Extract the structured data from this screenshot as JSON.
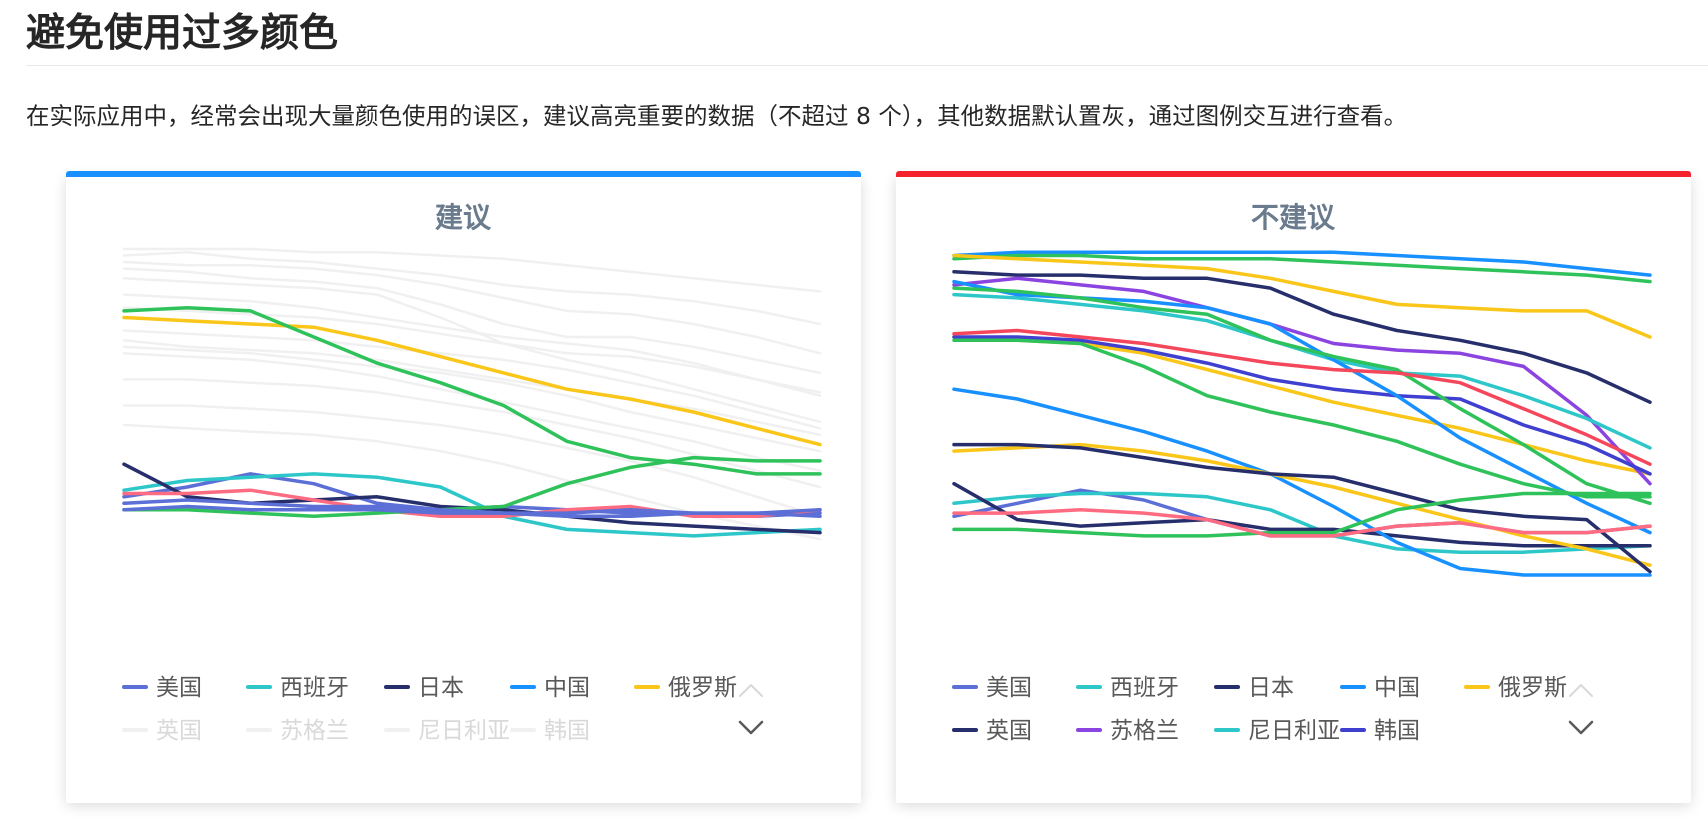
{
  "page": {
    "title": "避免使用过多颜色",
    "description": "在实际应用中，经常会出现大量颜色使用的误区，建议高亮重要的数据（不超过 8 个），其他数据默认置灰，通过图例交互进行查看。"
  },
  "colors": {
    "recommend_bar": "#1890ff",
    "not_recommend_bar": "#f5222d",
    "card_title": "#697b8c",
    "legend_text": "#595959",
    "legend_text_muted": "#d9d9d9",
    "gray_line": "#f0f0f0",
    "pager_active": "#595959",
    "pager_inactive": "#d9d9d9"
  },
  "chart_data": [
    {
      "type": "line",
      "title": "建议",
      "xlabel": "",
      "ylabel": "",
      "x": [
        0,
        1,
        2,
        3,
        4,
        5,
        6,
        7,
        8,
        9,
        10,
        11
      ],
      "ylim": [
        0,
        100
      ],
      "grid": false,
      "legend_position": "bottom",
      "series": [
        {
          "name": "美国",
          "color": "#5b6fd6",
          "values": [
            24,
            27,
            31,
            28,
            22,
            20,
            21,
            20,
            19,
            19,
            18,
            19
          ]
        },
        {
          "name": "西班牙",
          "color": "#2ec7c9",
          "values": [
            26,
            29,
            30,
            31,
            30,
            27,
            18,
            14,
            13,
            12,
            13,
            14
          ]
        },
        {
          "name": "日本",
          "color": "#262e6b",
          "values": [
            34,
            24,
            22,
            23,
            24,
            21,
            20,
            18,
            16,
            15,
            14,
            13
          ]
        },
        {
          "name": "中国",
          "color": "#ff6b81",
          "values": [
            25,
            25,
            26,
            23,
            20,
            18,
            18,
            20,
            21,
            18,
            18,
            20
          ]
        },
        {
          "name": "俄罗斯",
          "color": "#fac619",
          "values": [
            79,
            78,
            77,
            76,
            72,
            67,
            62,
            57,
            54,
            50,
            45,
            40
          ]
        },
        {
          "name": "英国",
          "color": "#2fc25b",
          "values": [
            81,
            82,
            81,
            73,
            65,
            59,
            52,
            41,
            36,
            34,
            31,
            31
          ]
        },
        {
          "name": "苏格兰",
          "color": "#2fc25b",
          "values": [
            20,
            20,
            19,
            18,
            19,
            20,
            21,
            28,
            33,
            36,
            35,
            35
          ]
        },
        {
          "name": "尼日利亚",
          "color": "#5b6fd6",
          "values": [
            22,
            23,
            22,
            21,
            21,
            20,
            19,
            19,
            20,
            19,
            19,
            20
          ]
        },
        {
          "name": "韩国",
          "color": "#5b6fd6",
          "values": [
            20,
            21,
            20,
            20,
            20,
            19,
            19,
            18,
            18,
            19,
            19,
            18
          ]
        },
        {
          "name": "",
          "color": "#f0f0f0",
          "values": [
            100,
            100,
            100,
            99,
            99,
            98,
            97,
            95,
            93,
            91,
            89,
            87
          ]
        },
        {
          "name": "",
          "color": "#f0f0f0",
          "values": [
            98,
            99,
            97,
            96,
            94,
            92,
            89,
            87,
            86,
            84,
            81,
            77
          ]
        },
        {
          "name": "",
          "color": "#f0f0f0",
          "values": [
            96,
            95,
            95,
            94,
            92,
            89,
            85,
            81,
            80,
            77,
            73,
            68
          ]
        },
        {
          "name": "",
          "color": "#f0f0f0",
          "values": [
            94,
            93,
            91,
            90,
            88,
            83,
            77,
            73,
            73,
            70,
            66,
            62
          ]
        },
        {
          "name": "",
          "color": "#f0f0f0",
          "values": [
            91,
            90,
            89,
            88,
            86,
            79,
            71,
            68,
            67,
            64,
            60,
            55
          ]
        },
        {
          "name": "",
          "color": "#f0f0f0",
          "values": [
            86,
            85,
            84,
            82,
            79,
            76,
            73,
            71,
            69,
            65,
            60,
            56
          ]
        },
        {
          "name": "",
          "color": "#f0f0f0",
          "values": [
            82,
            81,
            80,
            79,
            77,
            74,
            71,
            66,
            62,
            57,
            52,
            47
          ]
        },
        {
          "name": "",
          "color": "#f0f0f0",
          "values": [
            75,
            74,
            73,
            72,
            70,
            68,
            66,
            63,
            59,
            55,
            50,
            45
          ]
        },
        {
          "name": "",
          "color": "#f0f0f0",
          "values": [
            72,
            70,
            69,
            68,
            66,
            63,
            60,
            57,
            54,
            51,
            47,
            43
          ]
        },
        {
          "name": "",
          "color": "#f0f0f0",
          "values": [
            70,
            69,
            68,
            66,
            64,
            62,
            59,
            55,
            50,
            46,
            42,
            38
          ]
        },
        {
          "name": "",
          "color": "#f0f0f0",
          "values": [
            68,
            67,
            66,
            64,
            61,
            57,
            53,
            49,
            45,
            41,
            36,
            32
          ]
        },
        {
          "name": "",
          "color": "#f0f0f0",
          "values": [
            60,
            60,
            59,
            58,
            56,
            53,
            50,
            46,
            42,
            37,
            32,
            27
          ]
        },
        {
          "name": "",
          "color": "#f0f0f0",
          "values": [
            52,
            52,
            51,
            50,
            48,
            46,
            43,
            39,
            35,
            30,
            24,
            18
          ]
        },
        {
          "name": "",
          "color": "#f0f0f0",
          "values": [
            46,
            45,
            44,
            43,
            41,
            38,
            34,
            29,
            24,
            19,
            15,
            11
          ]
        }
      ],
      "legend": {
        "rows": [
          [
            {
              "name": "美国",
              "color": "#5b6fd6",
              "muted": false
            },
            {
              "name": "西班牙",
              "color": "#2ec7c9",
              "muted": false
            },
            {
              "name": "日本",
              "color": "#262e6b",
              "muted": false
            },
            {
              "name": "中国",
              "color": "#1890ff",
              "muted": false
            },
            {
              "name": "俄罗斯",
              "color": "#fac619",
              "muted": false
            }
          ],
          [
            {
              "name": "英国",
              "color": "#f0f0f0",
              "muted": true
            },
            {
              "name": "苏格兰",
              "color": "#f0f0f0",
              "muted": true
            },
            {
              "name": "尼日利亚",
              "color": "#f0f0f0",
              "muted": true
            },
            {
              "name": "韩国",
              "color": "#f0f0f0",
              "muted": true
            }
          ]
        ],
        "pager_up": "up-chevron-icon",
        "pager_down": "down-chevron-icon"
      }
    },
    {
      "type": "line",
      "title": "不建议",
      "xlabel": "",
      "ylabel": "",
      "x": [
        0,
        1,
        2,
        3,
        4,
        5,
        6,
        7,
        8,
        9,
        10,
        11
      ],
      "ylim": [
        0,
        100
      ],
      "grid": false,
      "legend_position": "bottom",
      "series": [
        {
          "name": "美国",
          "color": "#5b6fd6",
          "values": [
            18,
            22,
            26,
            23,
            17,
            12,
            12,
            15,
            16,
            13,
            13,
            15
          ]
        },
        {
          "name": "西班牙",
          "color": "#2ec7c9",
          "values": [
            22,
            24,
            25,
            25,
            24,
            20,
            12,
            8,
            7,
            7,
            8,
            9
          ]
        },
        {
          "name": "日本",
          "color": "#262e6b",
          "values": [
            28,
            17,
            15,
            16,
            17,
            14,
            14,
            12,
            10,
            9,
            9,
            9
          ]
        },
        {
          "name": "中国",
          "color": "#1890ff",
          "values": [
            57,
            54,
            49,
            44,
            38,
            31,
            21,
            10,
            2,
            0,
            0,
            0
          ]
        },
        {
          "name": "俄罗斯",
          "color": "#fac619",
          "values": [
            73,
            72,
            71,
            68,
            63,
            58,
            53,
            49,
            45,
            40,
            35,
            31
          ]
        },
        {
          "name": "英国",
          "color": "#262e6b",
          "values": [
            93,
            92,
            92,
            91,
            91,
            88,
            80,
            75,
            72,
            68,
            62,
            53
          ]
        },
        {
          "name": "苏格兰",
          "color": "#8c44e0",
          "values": [
            89,
            91,
            89,
            87,
            82,
            77,
            71,
            69,
            68,
            64,
            49,
            28
          ]
        },
        {
          "name": "尼日利亚",
          "color": "#2ec7c9",
          "values": [
            86,
            85,
            83,
            81,
            78,
            72,
            66,
            62,
            61,
            55,
            48,
            39
          ]
        },
        {
          "name": "韩国",
          "color": "#4040d0",
          "values": [
            73,
            73,
            72,
            69,
            65,
            60,
            57,
            55,
            54,
            46,
            40,
            31
          ]
        },
        {
          "name": "",
          "color": "#1890ff",
          "values": [
            98,
            99,
            99,
            99,
            99,
            99,
            99,
            98,
            97,
            96,
            94,
            92
          ]
        },
        {
          "name": "",
          "color": "#2fc25b",
          "values": [
            97,
            98,
            98,
            97,
            97,
            97,
            96,
            95,
            94,
            93,
            92,
            90
          ]
        },
        {
          "name": "",
          "color": "#fac619",
          "values": [
            98,
            97,
            96,
            95,
            94,
            91,
            87,
            83,
            82,
            81,
            81,
            73
          ]
        },
        {
          "name": "",
          "color": "#1890ff",
          "values": [
            90,
            86,
            85,
            84,
            82,
            77,
            66,
            55,
            42,
            32,
            22,
            13
          ]
        },
        {
          "name": "",
          "color": "#2fc25b",
          "values": [
            88,
            87,
            85,
            82,
            80,
            72,
            67,
            63,
            51,
            40,
            28,
            22
          ]
        },
        {
          "name": "",
          "color": "#f5475c",
          "values": [
            74,
            75,
            73,
            71,
            68,
            65,
            63,
            62,
            59,
            51,
            43,
            34
          ]
        },
        {
          "name": "",
          "color": "#2fc25b",
          "values": [
            72,
            72,
            71,
            64,
            55,
            50,
            46,
            41,
            34,
            28,
            24,
            24
          ]
        },
        {
          "name": "",
          "color": "#fac619",
          "values": [
            38,
            39,
            40,
            38,
            35,
            31,
            27,
            22,
            17,
            12,
            8,
            3
          ]
        },
        {
          "name": "",
          "color": "#262e6b",
          "values": [
            40,
            40,
            39,
            36,
            33,
            31,
            30,
            25,
            20,
            18,
            17,
            1
          ]
        },
        {
          "name": "",
          "color": "#2fc25b",
          "values": [
            14,
            14,
            13,
            12,
            12,
            13,
            13,
            20,
            23,
            25,
            25,
            25
          ]
        },
        {
          "name": "",
          "color": "#ff6b81",
          "values": [
            19,
            19,
            20,
            19,
            17,
            12,
            12,
            15,
            16,
            13,
            13,
            15
          ]
        }
      ],
      "legend": {
        "rows": [
          [
            {
              "name": "美国",
              "color": "#5b6fd6",
              "muted": false
            },
            {
              "name": "西班牙",
              "color": "#2ec7c9",
              "muted": false
            },
            {
              "name": "日本",
              "color": "#262e6b",
              "muted": false
            },
            {
              "name": "中国",
              "color": "#1890ff",
              "muted": false
            },
            {
              "name": "俄罗斯",
              "color": "#fac619",
              "muted": false
            }
          ],
          [
            {
              "name": "英国",
              "color": "#262e6b",
              "muted": false
            },
            {
              "name": "苏格兰",
              "color": "#8c44e0",
              "muted": false
            },
            {
              "name": "尼日利亚",
              "color": "#2ec7c9",
              "muted": false
            },
            {
              "name": "韩国",
              "color": "#4040d0",
              "muted": false
            }
          ]
        ],
        "pager_up": "up-chevron-icon",
        "pager_down": "down-chevron-icon"
      }
    }
  ]
}
